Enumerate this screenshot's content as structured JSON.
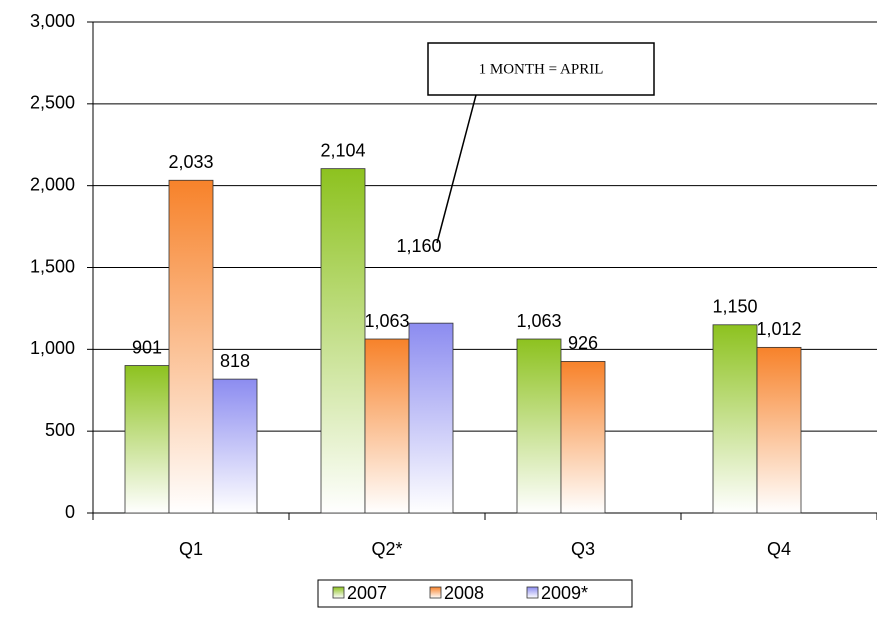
{
  "chart_data": {
    "type": "bar",
    "categories": [
      "Q1",
      "Q2*",
      "Q3",
      "Q4"
    ],
    "series": [
      {
        "name": "2007",
        "color": "#8dc21f",
        "values": [
          901,
          2104,
          1063,
          1150
        ],
        "value_labels": [
          "901",
          "2,104",
          "1,063",
          "1,150"
        ]
      },
      {
        "name": "2008",
        "color": "#f7822a",
        "values": [
          2033,
          1063,
          926,
          1012
        ],
        "value_labels": [
          "2,033",
          "1,063",
          "926",
          "1,012"
        ]
      },
      {
        "name": "2009*",
        "color": "#8c8cf0",
        "values": [
          818,
          1160,
          null,
          null
        ],
        "value_labels": [
          "818",
          "1,160",
          null,
          null
        ]
      }
    ],
    "annotation": "1 MONTH = APRIL",
    "ylim": [
      0,
      3000
    ],
    "yticks": [
      0,
      500,
      {
        "value": 1000,
        "label": "1,000"
      },
      {
        "value": 1500,
        "label": "1,500"
      },
      {
        "value": 2000,
        "label": "2,000"
      },
      {
        "value": 2500,
        "label": "2,500"
      },
      {
        "value": 3000,
        "label": "3,000"
      }
    ],
    "grid": true,
    "legend": "bottom"
  }
}
